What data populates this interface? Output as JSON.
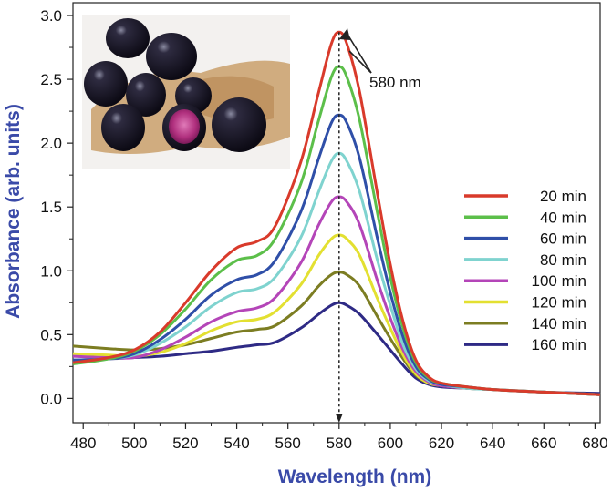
{
  "chart_data": {
    "type": "line",
    "title": "",
    "xlabel": "Wavelength (nm)",
    "ylabel": "Absorbance (arb. units)",
    "xlim": [
      476,
      682
    ],
    "ylim": [
      -0.19,
      3.1
    ],
    "xticks": [
      480,
      500,
      520,
      540,
      560,
      580,
      600,
      620,
      640,
      660,
      680
    ],
    "yticks": [
      0.0,
      0.5,
      1.0,
      1.5,
      2.0,
      2.5,
      3.0
    ],
    "xtick_labels": [
      "480",
      "500",
      "520",
      "540",
      "560",
      "580",
      "600",
      "620",
      "640",
      "660",
      "680"
    ],
    "ytick_labels": [
      "0.0",
      "0.5",
      "1.0",
      "1.5",
      "2.0",
      "2.5",
      "3.0"
    ],
    "x": [
      476,
      490,
      500,
      510,
      520,
      530,
      540,
      548,
      555,
      565,
      572,
      577,
      580,
      583,
      588,
      595,
      600,
      605,
      610,
      615,
      620,
      630,
      640,
      660,
      682
    ],
    "series": [
      {
        "name": "20 min",
        "color": "#d93a2b",
        "values": [
          0.28,
          0.32,
          0.38,
          0.52,
          0.75,
          1.0,
          1.18,
          1.23,
          1.35,
          1.85,
          2.4,
          2.78,
          2.87,
          2.78,
          2.4,
          1.6,
          1.05,
          0.6,
          0.3,
          0.17,
          0.12,
          0.09,
          0.07,
          0.05,
          0.03
        ]
      },
      {
        "name": "40 min",
        "color": "#5cbf4a",
        "values": [
          0.27,
          0.31,
          0.37,
          0.5,
          0.7,
          0.93,
          1.08,
          1.12,
          1.25,
          1.68,
          2.18,
          2.52,
          2.6,
          2.52,
          2.18,
          1.45,
          0.95,
          0.55,
          0.28,
          0.16,
          0.12,
          0.09,
          0.07,
          0.05,
          0.03
        ]
      },
      {
        "name": "60 min",
        "color": "#2f4fa8",
        "values": [
          0.3,
          0.31,
          0.35,
          0.46,
          0.62,
          0.81,
          0.93,
          0.97,
          1.08,
          1.46,
          1.88,
          2.16,
          2.22,
          2.16,
          1.88,
          1.25,
          0.83,
          0.48,
          0.25,
          0.15,
          0.11,
          0.09,
          0.07,
          0.05,
          0.03
        ]
      },
      {
        "name": "80 min",
        "color": "#7fd3cf",
        "values": [
          0.3,
          0.31,
          0.34,
          0.43,
          0.56,
          0.72,
          0.83,
          0.86,
          0.95,
          1.26,
          1.62,
          1.86,
          1.92,
          1.86,
          1.62,
          1.08,
          0.73,
          0.42,
          0.23,
          0.14,
          0.11,
          0.08,
          0.07,
          0.05,
          0.03
        ]
      },
      {
        "name": "100 min",
        "color": "#b445b8",
        "values": [
          0.33,
          0.32,
          0.32,
          0.38,
          0.48,
          0.6,
          0.68,
          0.71,
          0.79,
          1.06,
          1.36,
          1.54,
          1.58,
          1.54,
          1.36,
          0.92,
          0.63,
          0.38,
          0.21,
          0.13,
          0.1,
          0.08,
          0.07,
          0.05,
          0.03
        ]
      },
      {
        "name": "120 min",
        "color": "#e3e031",
        "values": [
          0.35,
          0.34,
          0.33,
          0.36,
          0.43,
          0.53,
          0.6,
          0.62,
          0.68,
          0.89,
          1.12,
          1.25,
          1.28,
          1.25,
          1.12,
          0.78,
          0.55,
          0.34,
          0.19,
          0.12,
          0.1,
          0.08,
          0.07,
          0.05,
          0.03
        ]
      },
      {
        "name": "140 min",
        "color": "#7c7d22",
        "values": [
          0.41,
          0.39,
          0.38,
          0.39,
          0.42,
          0.47,
          0.52,
          0.54,
          0.57,
          0.72,
          0.88,
          0.97,
          0.99,
          0.97,
          0.88,
          0.64,
          0.47,
          0.31,
          0.18,
          0.12,
          0.1,
          0.08,
          0.07,
          0.05,
          0.03
        ]
      },
      {
        "name": "160 min",
        "color": "#2e2a85",
        "values": [
          0.3,
          0.31,
          0.32,
          0.33,
          0.35,
          0.37,
          0.4,
          0.42,
          0.44,
          0.55,
          0.66,
          0.73,
          0.75,
          0.73,
          0.66,
          0.5,
          0.38,
          0.26,
          0.16,
          0.11,
          0.09,
          0.08,
          0.07,
          0.05,
          0.04
        ]
      }
    ],
    "annotation": {
      "text": "580 nm",
      "x": 580
    },
    "legend": "right",
    "grid": false,
    "inset": "photo of dark purple jamun fruits on burlap"
  }
}
